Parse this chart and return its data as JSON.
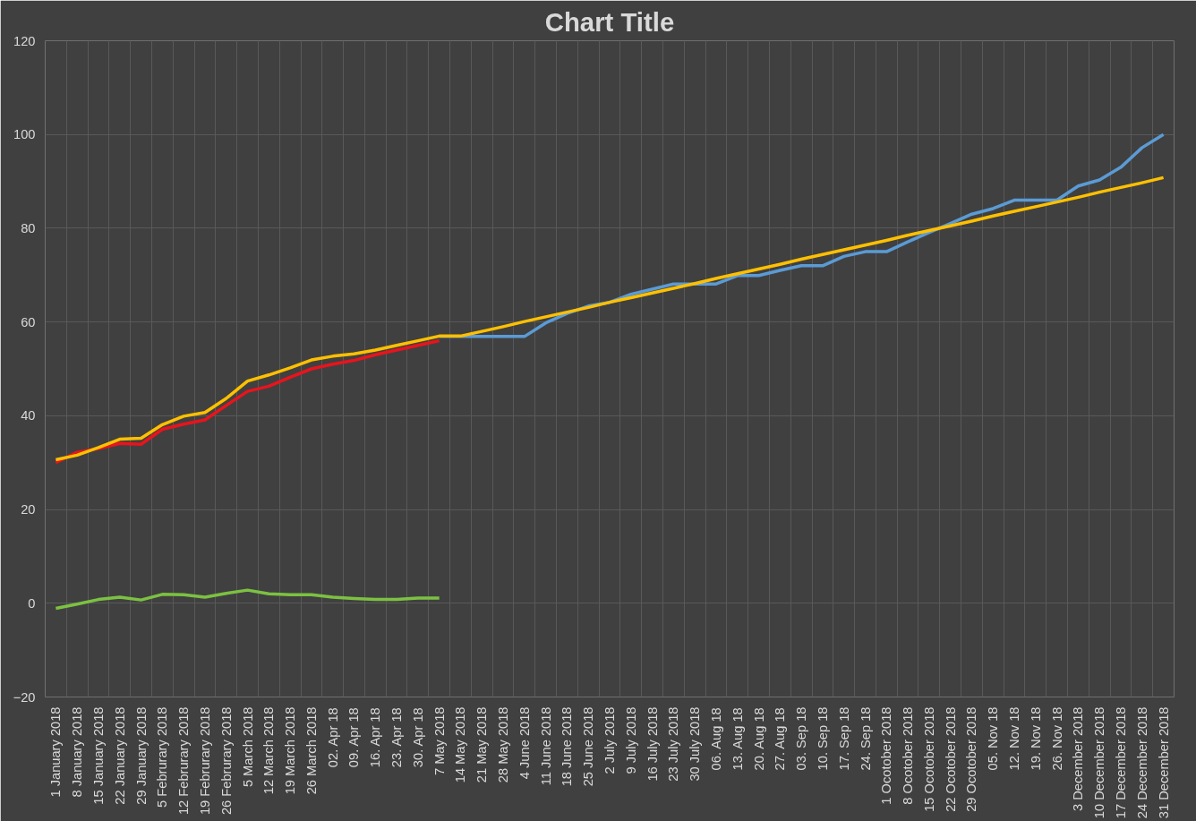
{
  "chart_data": {
    "type": "line",
    "title": "Chart Title",
    "categories": [
      "1 January 2018",
      "8 January 2018",
      "15 January 2018",
      "22 January 2018",
      "29 January 2018",
      "5 Februrary 2018",
      "12 Februrary 2018",
      "19 Februrary 2018",
      "26 Februrary 2018",
      "5 March 2018",
      "12 March 2018",
      "19 March 2018",
      "26 March 2018",
      "02. Apr 18",
      "09. Apr 18",
      "16. Apr 18",
      "23. Apr 18",
      "30. Apr 18",
      "7 May 2018",
      "14 May 2018",
      "21 May 2018",
      "28 May 2018",
      "4 June 2018",
      "11 June 2018",
      "18 June 2018",
      "25 June 2018",
      "2 July 2018",
      "9 July 2018",
      "16 July 2018",
      "23 July 2018",
      "30 July 2018",
      "06. Aug 18",
      "13. Aug 18",
      "20. Aug 18",
      "27. Aug 18",
      "03. Sep 18",
      "10. Sep 18",
      "17. Sep 18",
      "24. Sep 18",
      "1 Ocotober 2018",
      "8 Ocotober 2018",
      "15 Ocotober 2018",
      "22 Ocotober 2018",
      "29 Ocotober 2018",
      "05. Nov 18",
      "12. Nov 18",
      "19. Nov 18",
      "26. Nov 18",
      "3 December 2018",
      "10 December 2018",
      "17 December 2018",
      "24 December 2018",
      "31 December 2018"
    ],
    "ylim": [
      -20,
      120
    ],
    "yticks": [
      -20,
      0,
      20,
      40,
      60,
      80,
      100,
      120
    ],
    "grid": true,
    "line_style": "solid",
    "marker": "none",
    "series": [
      {
        "color": "#5b9bd5",
        "values": [
          null,
          null,
          null,
          null,
          null,
          null,
          null,
          null,
          null,
          null,
          null,
          null,
          null,
          null,
          null,
          null,
          null,
          null,
          56.9,
          56.9,
          56.9,
          56.9,
          56.9,
          59.8,
          61.8,
          63.4,
          64.2,
          65.9,
          67.0,
          68.1,
          68.1,
          68.1,
          69.9,
          69.9,
          71.0,
          72.0,
          72.0,
          74.0,
          75.0,
          75.0,
          77.1,
          79.1,
          81.0,
          83.0,
          84.2,
          86.0,
          86.0,
          86.0,
          89.0,
          90.3,
          93.0,
          97.2,
          100.0
        ]
      },
      {
        "color": "#e8141d",
        "values": [
          30.0,
          32.2,
          33.0,
          34.1,
          33.9,
          37.1,
          38.2,
          39.1,
          42.2,
          45.2,
          46.3,
          48.2,
          50.0,
          51.0,
          51.8,
          53.0,
          54.0,
          55.0,
          56.0,
          null,
          null,
          null,
          null,
          null,
          null,
          null,
          null,
          null,
          null,
          null,
          null,
          null,
          null,
          null,
          null,
          null,
          null,
          null,
          null,
          null,
          null,
          null,
          null,
          null,
          null,
          null,
          null,
          null,
          null,
          null,
          null,
          null,
          null
        ]
      },
      {
        "color": "#ffc000",
        "values": [
          30.6,
          31.6,
          33.2,
          35.0,
          35.2,
          38.1,
          39.9,
          40.7,
          43.7,
          47.4,
          48.7,
          50.2,
          51.9,
          52.7,
          53.2,
          54.0,
          55.0,
          56.0,
          57.0,
          57.0,
          58.0,
          59.0,
          60.1,
          61.1,
          62.1,
          63.1,
          64.2,
          65.2,
          66.2,
          67.2,
          68.2,
          69.3,
          70.3,
          71.3,
          72.3,
          73.4,
          74.4,
          75.4,
          76.4,
          77.4,
          78.5,
          79.5,
          80.5,
          81.5,
          82.6,
          83.6,
          84.6,
          85.6,
          86.6,
          87.7,
          88.7,
          89.7,
          90.8
        ]
      },
      {
        "color": "#7cc142",
        "values": [
          -1.1,
          -0.2,
          0.8,
          1.3,
          0.7,
          1.9,
          1.8,
          1.3,
          2.1,
          2.8,
          2.0,
          1.8,
          1.8,
          1.3,
          1.0,
          0.8,
          0.8,
          1.1,
          1.1,
          null,
          null,
          null,
          null,
          null,
          null,
          null,
          null,
          null,
          null,
          null,
          null,
          null,
          null,
          null,
          null,
          null,
          null,
          null,
          null,
          null,
          null,
          null,
          null,
          null,
          null,
          null,
          null,
          null,
          null,
          null,
          null,
          null,
          null
        ]
      }
    ]
  }
}
